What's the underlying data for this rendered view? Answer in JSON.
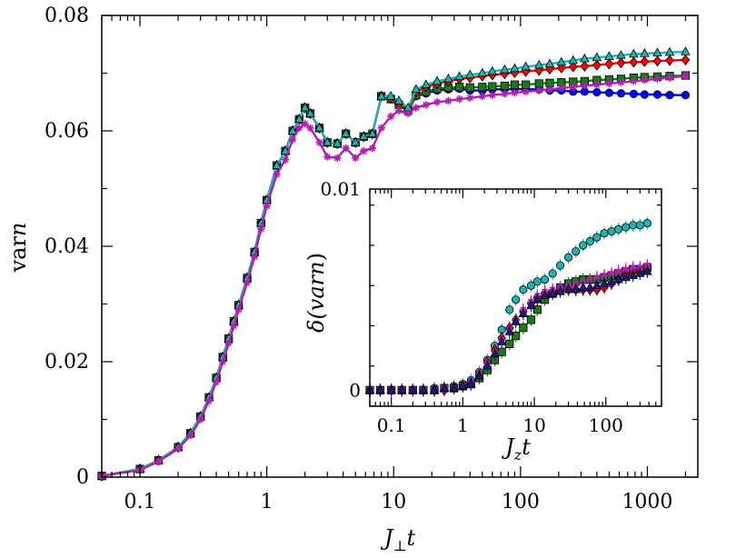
{
  "chart_data": [
    {
      "type": "line",
      "role": "main",
      "xscale": "log",
      "xlim": [
        0.05,
        2500
      ],
      "ylim": [
        0,
        0.08
      ],
      "xlabel_main": "J",
      "xlabel_sub": "⊥",
      "xlabel_tail": "t",
      "ylabel_prefix": "var",
      "ylabel_ital": "n",
      "xticks": [
        0.1,
        1,
        10,
        100,
        1000
      ],
      "xtick_labels": [
        "0.1",
        "1",
        "10",
        "100",
        "1000"
      ],
      "yticks": [
        0,
        0.02,
        0.04,
        0.06,
        0.08
      ],
      "ytick_labels": [
        "0",
        "0.02",
        "0.04",
        "0.06",
        "0.08"
      ],
      "x": [
        0.05,
        0.1,
        0.14,
        0.2,
        0.25,
        0.3,
        0.35,
        0.4,
        0.45,
        0.5,
        0.55,
        0.6,
        0.7,
        0.8,
        0.9,
        1.0,
        1.2,
        1.4,
        1.6,
        1.8,
        2.0,
        2.2,
        2.6,
        3.0,
        3.6,
        4.2,
        5.0,
        5.8,
        6.8,
        8.0,
        9.5,
        11,
        13,
        15,
        18,
        22,
        27,
        33,
        40,
        50,
        60,
        75,
        90,
        110,
        140,
        170,
        210,
        260,
        320,
        400,
        500,
        620,
        780,
        950,
        1200,
        1500,
        2000
      ],
      "series": [
        {
          "name": "blue",
          "color": "#0000ff",
          "marker": "circle",
          "values": [
            0.0002,
            0.0014,
            0.0029,
            0.0052,
            0.0076,
            0.0105,
            0.0138,
            0.0172,
            0.0208,
            0.024,
            0.027,
            0.0298,
            0.0345,
            0.039,
            0.044,
            0.048,
            0.054,
            0.0565,
            0.06,
            0.062,
            0.064,
            0.063,
            0.0605,
            0.058,
            0.0578,
            0.0595,
            0.058,
            0.059,
            0.0595,
            0.066,
            0.0655,
            0.0645,
            0.0635,
            0.066,
            0.0665,
            0.067,
            0.0672,
            0.0673,
            0.067,
            0.067,
            0.0672,
            0.0672,
            0.0673,
            0.0672,
            0.0672,
            0.067,
            0.067,
            0.0668,
            0.0668,
            0.0667,
            0.0666,
            0.0665,
            0.0664,
            0.0663,
            0.0663,
            0.0662,
            0.0662
          ]
        },
        {
          "name": "green",
          "color": "#1a7a1a",
          "marker": "square",
          "values": [
            0.0002,
            0.0014,
            0.0029,
            0.0052,
            0.0076,
            0.0105,
            0.0138,
            0.0172,
            0.0208,
            0.024,
            0.027,
            0.0298,
            0.0345,
            0.039,
            0.044,
            0.048,
            0.054,
            0.0565,
            0.06,
            0.062,
            0.064,
            0.063,
            0.0605,
            0.058,
            0.0578,
            0.0595,
            0.058,
            0.059,
            0.0595,
            0.066,
            0.0655,
            0.0645,
            0.0635,
            0.0662,
            0.0668,
            0.0673,
            0.0675,
            0.0676,
            0.0675,
            0.0676,
            0.0677,
            0.0678,
            0.068,
            0.068,
            0.0682,
            0.0683,
            0.0684,
            0.0685,
            0.0686,
            0.0688,
            0.0689,
            0.069,
            0.0692,
            0.0693,
            0.0694,
            0.0695,
            0.0696
          ]
        },
        {
          "name": "red",
          "color": "#ff0000",
          "marker": "diamond",
          "values": [
            0.0002,
            0.0014,
            0.0029,
            0.0052,
            0.0076,
            0.0105,
            0.0138,
            0.0172,
            0.0208,
            0.024,
            0.027,
            0.0298,
            0.0345,
            0.039,
            0.044,
            0.048,
            0.054,
            0.0565,
            0.06,
            0.062,
            0.064,
            0.063,
            0.0605,
            0.058,
            0.0578,
            0.0595,
            0.058,
            0.059,
            0.0595,
            0.066,
            0.0657,
            0.0648,
            0.0638,
            0.0668,
            0.0676,
            0.0682,
            0.0686,
            0.069,
            0.0692,
            0.0695,
            0.0697,
            0.0699,
            0.0701,
            0.0703,
            0.0705,
            0.0707,
            0.0709,
            0.0711,
            0.0712,
            0.0714,
            0.0716,
            0.0718,
            0.0719,
            0.072,
            0.0721,
            0.0722,
            0.0723
          ]
        },
        {
          "name": "cyan",
          "color": "#1fb2b2",
          "marker": "triangle",
          "values": [
            0.0002,
            0.0014,
            0.0029,
            0.0052,
            0.0076,
            0.0105,
            0.0138,
            0.0172,
            0.0208,
            0.024,
            0.027,
            0.0298,
            0.0345,
            0.039,
            0.044,
            0.048,
            0.054,
            0.0565,
            0.06,
            0.062,
            0.064,
            0.063,
            0.0605,
            0.058,
            0.0578,
            0.0595,
            0.058,
            0.059,
            0.0595,
            0.066,
            0.066,
            0.0652,
            0.064,
            0.0672,
            0.068,
            0.0686,
            0.069,
            0.0694,
            0.0697,
            0.07,
            0.0703,
            0.0706,
            0.0708,
            0.0711,
            0.0714,
            0.0716,
            0.0719,
            0.0722,
            0.0725,
            0.0727,
            0.0729,
            0.0731,
            0.0733,
            0.0734,
            0.0735,
            0.0736,
            0.0737
          ]
        },
        {
          "name": "magenta",
          "color": "#b01fb0",
          "marker": "star",
          "values": [
            0.0002,
            0.0012,
            0.0027,
            0.0049,
            0.0072,
            0.01,
            0.0132,
            0.0165,
            0.02,
            0.0232,
            0.0262,
            0.029,
            0.0337,
            0.0382,
            0.043,
            0.047,
            0.0525,
            0.055,
            0.0585,
            0.0605,
            0.0612,
            0.0605,
            0.058,
            0.0555,
            0.0553,
            0.057,
            0.0553,
            0.0565,
            0.057,
            0.0605,
            0.0625,
            0.0635,
            0.063,
            0.064,
            0.0645,
            0.065,
            0.0652,
            0.0655,
            0.0657,
            0.066,
            0.0662,
            0.0664,
            0.0666,
            0.0668,
            0.067,
            0.0672,
            0.0674,
            0.0676,
            0.0678,
            0.068,
            0.0682,
            0.0684,
            0.0686,
            0.0688,
            0.069,
            0.0692,
            0.0695
          ]
        }
      ]
    },
    {
      "type": "scatter",
      "role": "inset",
      "xscale": "log",
      "xlim": [
        0.05,
        600
      ],
      "ylim": [
        -0.0008,
        0.01
      ],
      "xlabel_main": "J",
      "xlabel_sub": "z",
      "xlabel_tail": "t",
      "ylabel_prefix": "δ(var",
      "ylabel_ital": "n",
      "ylabel_suffix": ")",
      "xticks": [
        0.1,
        1,
        10,
        100
      ],
      "xtick_labels": [
        "0.1",
        "1",
        "10",
        "100"
      ],
      "yticks": [
        0,
        0.01
      ],
      "ytick_labels": [
        "0",
        "0.01"
      ],
      "x": [
        0.05,
        0.07,
        0.1,
        0.14,
        0.2,
        0.28,
        0.4,
        0.55,
        0.75,
        1.0,
        1.3,
        1.7,
        2.2,
        2.8,
        3.5,
        4.5,
        5.5,
        7.0,
        9.0,
        11,
        14,
        18,
        23,
        30,
        38,
        48,
        60,
        75,
        95,
        120,
        150,
        190,
        240,
        300,
        380
      ],
      "series": [
        {
          "name": "cyan",
          "color": "#1fb2b2",
          "marker": "circle",
          "values": [
            0.0,
            0.0,
            0.0,
            0.0,
            0.0,
            0.0,
            0.0001,
            0.0001,
            0.0002,
            0.0003,
            0.0005,
            0.0009,
            0.0015,
            0.0022,
            0.003,
            0.004,
            0.0045,
            0.005,
            0.0052,
            0.0054,
            0.0055,
            0.0058,
            0.0062,
            0.0066,
            0.0069,
            0.0072,
            0.0074,
            0.0076,
            0.0078,
            0.0079,
            0.008,
            0.0081,
            0.0082,
            0.0082,
            0.0083
          ]
        },
        {
          "name": "green",
          "color": "#1a7a1a",
          "marker": "square",
          "values": [
            0.0,
            0.0,
            0.0,
            0.0,
            0.0,
            0.0,
            0.0,
            0.0001,
            0.0001,
            0.0002,
            0.0003,
            0.0006,
            0.001,
            0.0015,
            0.0019,
            0.0023,
            0.0027,
            0.0031,
            0.0035,
            0.004,
            0.0045,
            0.0048,
            0.0051,
            0.0053,
            0.0054,
            0.0055,
            0.0055,
            0.0055,
            0.0056,
            0.0057,
            0.0058,
            0.0059,
            0.006,
            0.006,
            0.0061
          ]
        },
        {
          "name": "red",
          "color": "#ff0000",
          "marker": "diamond",
          "values": [
            0.0,
            0.0,
            0.0,
            0.0,
            0.0,
            0.0,
            0.0,
            0.0,
            0.0001,
            0.0002,
            0.0004,
            0.0008,
            0.0014,
            0.002,
            0.0026,
            0.0031,
            0.0035,
            0.0039,
            0.0043,
            0.0046,
            0.0048,
            0.0049,
            0.005,
            0.005,
            0.005,
            0.005,
            0.005,
            0.005,
            0.0051,
            0.0053,
            0.0055,
            0.0057,
            0.0059,
            0.006,
            0.0061
          ]
        },
        {
          "name": "magenta",
          "color": "#b01fb0",
          "marker": "star",
          "values": [
            0.0,
            0.0,
            0.0,
            0.0,
            0.0,
            0.0,
            0.0,
            0.0001,
            0.0001,
            0.0002,
            0.0004,
            0.0008,
            0.0013,
            0.0019,
            0.0025,
            0.003,
            0.0035,
            0.004,
            0.0044,
            0.0047,
            0.0049,
            0.005,
            0.0051,
            0.0052,
            0.0053,
            0.0054,
            0.0055,
            0.0056,
            0.0057,
            0.0058,
            0.0059,
            0.006,
            0.0061,
            0.0061,
            0.0062
          ]
        },
        {
          "name": "navy",
          "color": "#1a1a80",
          "marker": "triangle",
          "values": [
            0.0,
            0.0,
            0.0,
            0.0,
            0.0,
            0.0,
            0.0,
            0.0001,
            0.0001,
            0.0002,
            0.0003,
            0.0007,
            0.0012,
            0.0018,
            0.0024,
            0.0029,
            0.0034,
            0.0038,
            0.0042,
            0.0045,
            0.0047,
            0.0048,
            0.0049,
            0.005,
            0.005,
            0.0051,
            0.0051,
            0.0052,
            0.0053,
            0.0054,
            0.0055,
            0.0056,
            0.0057,
            0.0058,
            0.0059
          ]
        }
      ]
    }
  ]
}
